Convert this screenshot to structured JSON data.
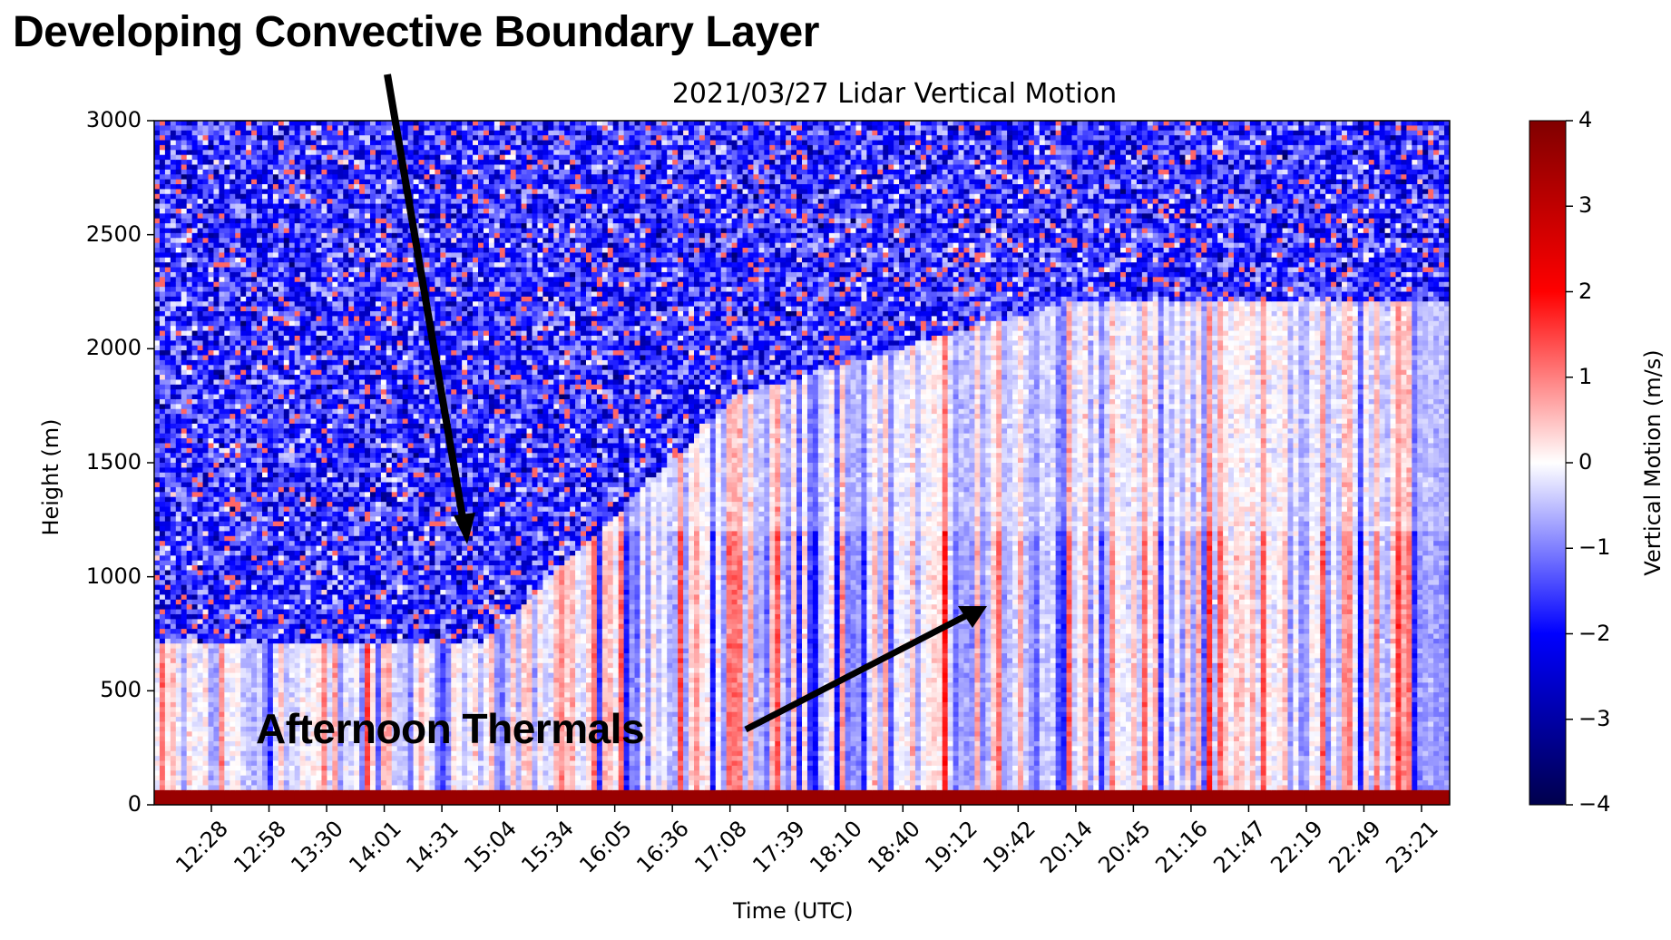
{
  "annotations": {
    "top": "Developing Convective Boundary Layer",
    "bottom": "Afternoon Thermals"
  },
  "chart_data": {
    "type": "heatmap",
    "title": "2021/03/27 Lidar Vertical Motion",
    "xlabel": "Time (UTC)",
    "ylabel": "Height (m)",
    "x_tick_labels": [
      "12:28",
      "12:58",
      "13:30",
      "14:01",
      "14:31",
      "15:04",
      "15:34",
      "16:05",
      "16:36",
      "17:08",
      "17:39",
      "18:10",
      "18:40",
      "19:12",
      "19:42",
      "20:14",
      "20:45",
      "21:16",
      "21:47",
      "22:19",
      "22:49",
      "23:21"
    ],
    "y_ticks": [
      0,
      500,
      1000,
      1500,
      2000,
      2500,
      3000
    ],
    "y_tick_labels": [
      "0",
      "500",
      "1000",
      "1500",
      "2000",
      "2500",
      "3000"
    ],
    "ylim": [
      0,
      3000
    ],
    "xlim": [
      "~11:58",
      "~23:27"
    ],
    "colorbar": {
      "label": "Vertical Motion (m/s)",
      "range": [
        -4,
        4
      ],
      "ticks": [
        4,
        3,
        2,
        1,
        0,
        -1,
        -2,
        -3,
        -4
      ],
      "tick_labels": [
        "4",
        "3",
        "2",
        "1",
        "0",
        "−1",
        "−2",
        "−3",
        "−4"
      ],
      "colormap": "seismic"
    },
    "description_regions": [
      {
        "region": "noisy upper layer (mixed blue/red speckle)",
        "height_min": 700,
        "height_max": 3000,
        "time": "12:00-15:00",
        "value_range": [
          -2.5,
          1.5
        ]
      },
      {
        "region": "boundary layer top rising",
        "height_start": 700,
        "height_end": 1800,
        "time": "12:00-17:00"
      },
      {
        "region": "afternoon thermals (vertical streaks)",
        "height_min": 0,
        "height_max": 2200,
        "time": "16:00-23:00",
        "value_range": [
          -3.5,
          2.0
        ]
      },
      {
        "region": "near-surface band",
        "height_min": 0,
        "height_max": 60,
        "value": 3.5
      }
    ]
  },
  "colors": {
    "cmap_low": "#00004c",
    "cmap_mid": "#ffffff",
    "cmap_high": "#800000",
    "text": "#000000"
  }
}
